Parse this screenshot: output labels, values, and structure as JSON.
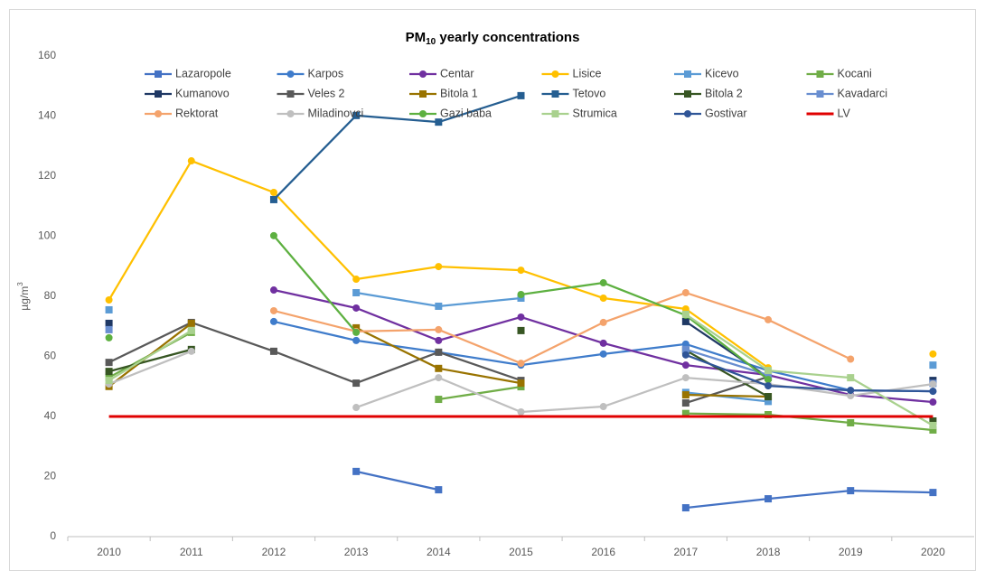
{
  "chart_data": {
    "type": "line",
    "title": [
      "PM",
      "10",
      " yearly concentrations"
    ],
    "ylabel": [
      "µg/m",
      "3"
    ],
    "categories": [
      "2010",
      "2011",
      "2012",
      "2013",
      "2014",
      "2015",
      "2016",
      "2017",
      "2018",
      "2019",
      "2020"
    ],
    "ylim": [
      0,
      160
    ],
    "yticks": [
      0,
      20,
      40,
      60,
      80,
      100,
      120,
      140,
      160
    ],
    "series": [
      {
        "name": "Lazaropole",
        "color": "#4472C4",
        "marker": "square",
        "values": [
          null,
          null,
          null,
          21.7,
          15.6,
          null,
          null,
          9.6,
          12.6,
          15.3,
          14.7
        ]
      },
      {
        "name": "Karpos",
        "color": "#3F7CCB",
        "marker": "circle",
        "values": [
          null,
          null,
          71.6,
          65.3,
          61.4,
          57.1,
          60.8,
          64.1,
          55.3,
          48.7,
          48.4
        ]
      },
      {
        "name": "Centar",
        "color": "#7030A0",
        "marker": "circle",
        "values": [
          null,
          null,
          82.1,
          76.1,
          65.3,
          73.1,
          64.4,
          57.1,
          53.8,
          47.2,
          44.8
        ]
      },
      {
        "name": "Lisice",
        "color": "#FFC000",
        "marker": "circle",
        "values": [
          78.8,
          125.1,
          114.6,
          85.7,
          89.9,
          88.7,
          79.4,
          75.8,
          56.2,
          null,
          60.8
        ]
      },
      {
        "name": "Kicevo",
        "color": "#5B9BD5",
        "marker": "square",
        "values": [
          75.5,
          null,
          null,
          81.2,
          76.7,
          79.4,
          null,
          48.0,
          45.0,
          null,
          57.1
        ]
      },
      {
        "name": "Kocani",
        "color": "#70AD47",
        "marker": "square",
        "values": [
          53.0,
          68.0,
          null,
          null,
          45.7,
          49.9,
          null,
          41.0,
          40.6,
          37.9,
          35.5
        ]
      },
      {
        "name": "Kumanovo",
        "color": "#1F3864",
        "marker": "square",
        "values": [
          71.0,
          null,
          null,
          null,
          null,
          null,
          null,
          71.6,
          53.0,
          null,
          52.0
        ]
      },
      {
        "name": "Veles 2",
        "color": "#595959",
        "marker": "square",
        "values": [
          58.0,
          71.3,
          61.7,
          51.1,
          61.4,
          52.0,
          null,
          44.5,
          53.2,
          null,
          null
        ]
      },
      {
        "name": "Bitola 1",
        "color": "#997300",
        "marker": "square",
        "values": [
          50.0,
          71.0,
          null,
          69.5,
          56.0,
          51.1,
          null,
          47.2,
          46.6,
          null,
          null
        ]
      },
      {
        "name": "Tetovo",
        "color": "#255E91",
        "marker": "square",
        "values": [
          null,
          null,
          112.2,
          140.2,
          138.0,
          146.8,
          null,
          null,
          null,
          null,
          null
        ]
      },
      {
        "name": "Bitola 2",
        "color": "#375623",
        "marker": "square",
        "values": [
          55.0,
          62.3,
          null,
          null,
          null,
          68.6,
          null,
          62.0,
          46.6,
          null,
          38.5
        ]
      },
      {
        "name": "Kavadarci",
        "color": "#698ED0",
        "marker": "square",
        "values": [
          68.9,
          null,
          null,
          null,
          null,
          null,
          null,
          62.3,
          53.8,
          null,
          51.0
        ]
      },
      {
        "name": "Rektorat",
        "color": "#F4A36C",
        "marker": "circle",
        "values": [
          null,
          null,
          75.2,
          68.3,
          68.9,
          57.7,
          71.3,
          81.2,
          72.2,
          59.1,
          null
        ]
      },
      {
        "name": "Miladinovci",
        "color": "#BFBFBF",
        "marker": "circle",
        "values": [
          50.8,
          61.7,
          null,
          43.0,
          52.9,
          41.5,
          43.3,
          52.9,
          50.8,
          46.9,
          50.8
        ]
      },
      {
        "name": "Gazi baba",
        "color": "#5DB040",
        "marker": "circle",
        "values": [
          66.2,
          null,
          100.2,
          68.0,
          null,
          80.6,
          84.5,
          73.7,
          52.3,
          null,
          null
        ]
      },
      {
        "name": "Strumica",
        "color": "#A9D18E",
        "marker": "square",
        "values": [
          52.0,
          68.6,
          null,
          null,
          null,
          null,
          null,
          74.0,
          55.3,
          52.9,
          37.0
        ]
      },
      {
        "name": "Gostivar",
        "color": "#2F5597",
        "marker": "circle",
        "values": [
          null,
          null,
          null,
          null,
          null,
          null,
          null,
          60.5,
          50.2,
          48.7,
          48.4
        ]
      },
      {
        "name": "LV",
        "color": "#E00000",
        "marker": "none",
        "values": [
          40,
          40,
          40,
          40,
          40,
          40,
          40,
          40,
          40,
          40,
          40
        ]
      }
    ]
  }
}
